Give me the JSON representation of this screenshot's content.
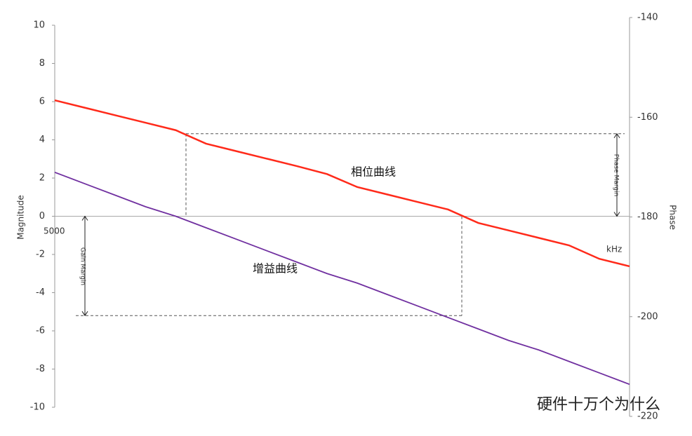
{
  "chart_data": {
    "type": "line",
    "y_label": "Magnitude",
    "y2_label": "Phase",
    "categories": [
      null,
      null,
      null,
      null,
      null,
      null,
      null,
      null,
      null,
      null,
      null,
      null,
      null,
      null,
      null,
      null,
      null,
      null,
      null,
      null
    ],
    "series": [
      {
        "name": "增益曲线",
        "color": "#7030a0",
        "axis": "y",
        "values": [
          2.3,
          1.7,
          1.1,
          0.5,
          0.0,
          -0.6,
          -1.2,
          -1.8,
          -2.4,
          -3.0,
          -3.5,
          -4.1,
          -4.7,
          -5.3,
          -5.9,
          -6.5,
          -7.0,
          -7.6,
          -8.2,
          -8.8
        ]
      },
      {
        "name": "相位曲线",
        "color": "#ff2a1a",
        "axis": "y2",
        "values": [
          -156.6,
          -158.1,
          -159.6,
          -161.1,
          -162.6,
          -165.3,
          -166.8,
          -168.3,
          -169.8,
          -171.4,
          -174.0,
          -175.5,
          -177.0,
          -178.5,
          -181.2,
          -182.7,
          -184.2,
          -185.7,
          -188.4,
          -189.9
        ]
      }
    ],
    "ylim": [
      -10,
      10
    ],
    "yticks": [
      -10,
      -8,
      -6,
      -4,
      -2,
      0,
      2,
      4,
      6,
      8,
      10
    ],
    "y2lim": [
      -220,
      -140
    ],
    "y2ticks": [
      -220,
      -200,
      -180,
      -160,
      -140
    ],
    "grid": false,
    "gain_margin_level": -5.2,
    "phase_margin_level": -163.3,
    "annotations": {
      "phase_margin": "Phase Margin",
      "gain_margin": "Gain Margin",
      "start_freq": "5000",
      "unit": "kHz",
      "watermark": "硬件十万个为什么"
    }
  }
}
